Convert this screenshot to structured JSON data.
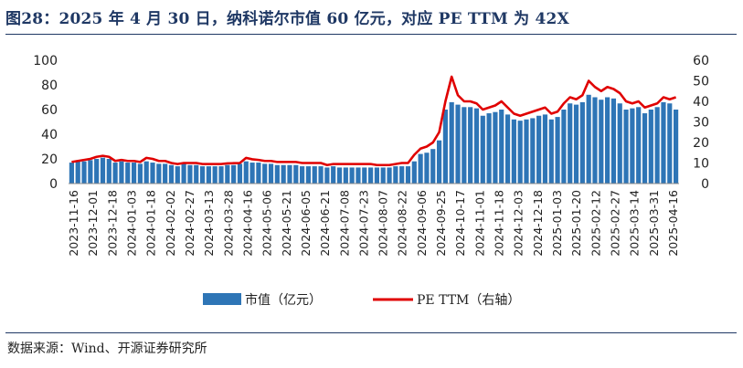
{
  "title": "图28：2025 年 4 月 30 日，纳科诺尔市值 60 亿元，对应 PE TTM 为 42X",
  "source": "数据来源：Wind、开源证券研究所",
  "colors": {
    "bar": "#2e75b6",
    "line": "#e00000",
    "title": "#1f3864"
  },
  "chart_data": {
    "type": "bar+line",
    "x_tick_labels": [
      "2023-11-16",
      "2023-12-01",
      "2023-12-18",
      "2024-01-03",
      "2024-01-18",
      "2024-02-02",
      "2024-02-27",
      "2024-03-13",
      "2024-03-28",
      "2024-04-16",
      "2024-05-06",
      "2024-05-21",
      "2024-06-05",
      "2024-06-21",
      "2024-07-08",
      "2024-07-23",
      "2024-08-07",
      "2024-08-22",
      "2024-09-06",
      "2024-09-25",
      "2024-10-17",
      "2024-11-01",
      "2024-11-18",
      "2024-12-03",
      "2024-12-18",
      "2025-01-03",
      "2025-01-20",
      "2025-02-12",
      "2025-02-27",
      "2025-03-14",
      "2025-03-31",
      "2025-04-16"
    ],
    "left_axis": {
      "ylim": [
        0,
        100
      ],
      "ticks": [
        "0",
        "20",
        "40",
        "60",
        "80",
        "100"
      ]
    },
    "right_axis": {
      "ylim": [
        0,
        60
      ],
      "ticks": [
        "0",
        "10",
        "20",
        "30",
        "40",
        "50",
        "60"
      ]
    },
    "series": [
      {
        "name": "市值（亿元）",
        "type": "bar",
        "axis": "left",
        "values": [
          17,
          18,
          18,
          19,
          20,
          21,
          20,
          17,
          18,
          17,
          17,
          16,
          18,
          17,
          16,
          16,
          15,
          14,
          16,
          15,
          15,
          14,
          14,
          14,
          14,
          15,
          15,
          16,
          18,
          17,
          17,
          16,
          16,
          15,
          15,
          15,
          15,
          14,
          14,
          14,
          14,
          13,
          14,
          13,
          13,
          13,
          13,
          13,
          13,
          13,
          13,
          13,
          14,
          14,
          14,
          18,
          24,
          25,
          28,
          35,
          60,
          66,
          64,
          62,
          62,
          61,
          55,
          57,
          58,
          60,
          56,
          52,
          51,
          52,
          53,
          55,
          56,
          52,
          54,
          60,
          65,
          64,
          66,
          72,
          70,
          68,
          70,
          69,
          65,
          60,
          61,
          62,
          57,
          60,
          62,
          66,
          65,
          60
        ]
      },
      {
        "name": "PE TTM（右轴）",
        "type": "line",
        "axis": "right",
        "values": [
          10.5,
          11,
          11.5,
          12,
          13,
          13.5,
          13,
          11,
          11.5,
          11,
          11,
          10.5,
          12.5,
          12,
          11,
          11,
          10,
          9.5,
          10,
          10,
          10,
          9.5,
          9.5,
          9.5,
          9.5,
          9.8,
          9.9,
          10,
          12.5,
          11.8,
          11.5,
          11,
          11,
          10.5,
          10.5,
          10.5,
          10.5,
          10,
          10,
          10,
          10,
          9,
          9.5,
          9.5,
          9.5,
          9.5,
          9.5,
          9.5,
          9.5,
          9,
          9,
          9,
          9.5,
          10,
          10,
          14,
          17,
          18,
          20,
          25,
          40,
          52,
          43,
          40,
          40,
          39,
          36,
          37,
          38,
          40,
          37,
          34,
          33,
          34,
          35,
          36,
          37,
          34,
          35,
          39,
          42,
          41,
          43,
          50,
          47,
          45,
          47,
          46,
          44,
          40,
          39,
          40,
          37,
          38,
          39,
          42,
          41,
          42
        ]
      }
    ],
    "legend": {
      "placement": "bottom"
    }
  }
}
